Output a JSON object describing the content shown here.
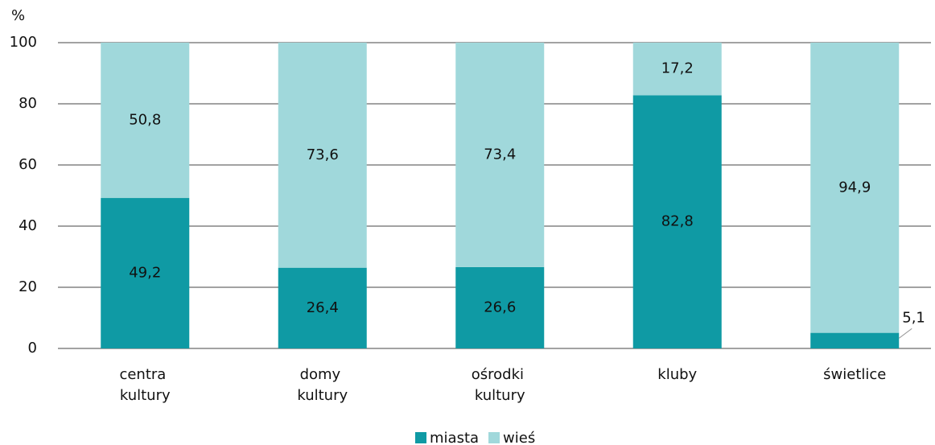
{
  "chart_data": {
    "type": "stacked_bar",
    "y_label": "%",
    "categories": [
      "centra kultury",
      "domy kultury",
      "ośrodki kultury",
      "kluby",
      "świetlice"
    ],
    "series": [
      {
        "name": "miasta",
        "color": "#0f9aa4",
        "values": [
          49.2,
          26.4,
          26.6,
          82.8,
          5.1
        ],
        "value_labels": [
          "49,2",
          "26,4",
          "26,6",
          "82,8",
          "5,1"
        ]
      },
      {
        "name": "wieś",
        "color": "#a0d8db",
        "values": [
          50.8,
          73.6,
          73.4,
          17.2,
          94.9
        ],
        "value_labels": [
          "50,8",
          "73,6",
          "73,4",
          "17,2",
          "94,9"
        ]
      }
    ],
    "ylim": [
      0,
      100
    ],
    "yticks": [
      0,
      20,
      40,
      60,
      80,
      100
    ],
    "grid": true,
    "legend": "bottom"
  }
}
